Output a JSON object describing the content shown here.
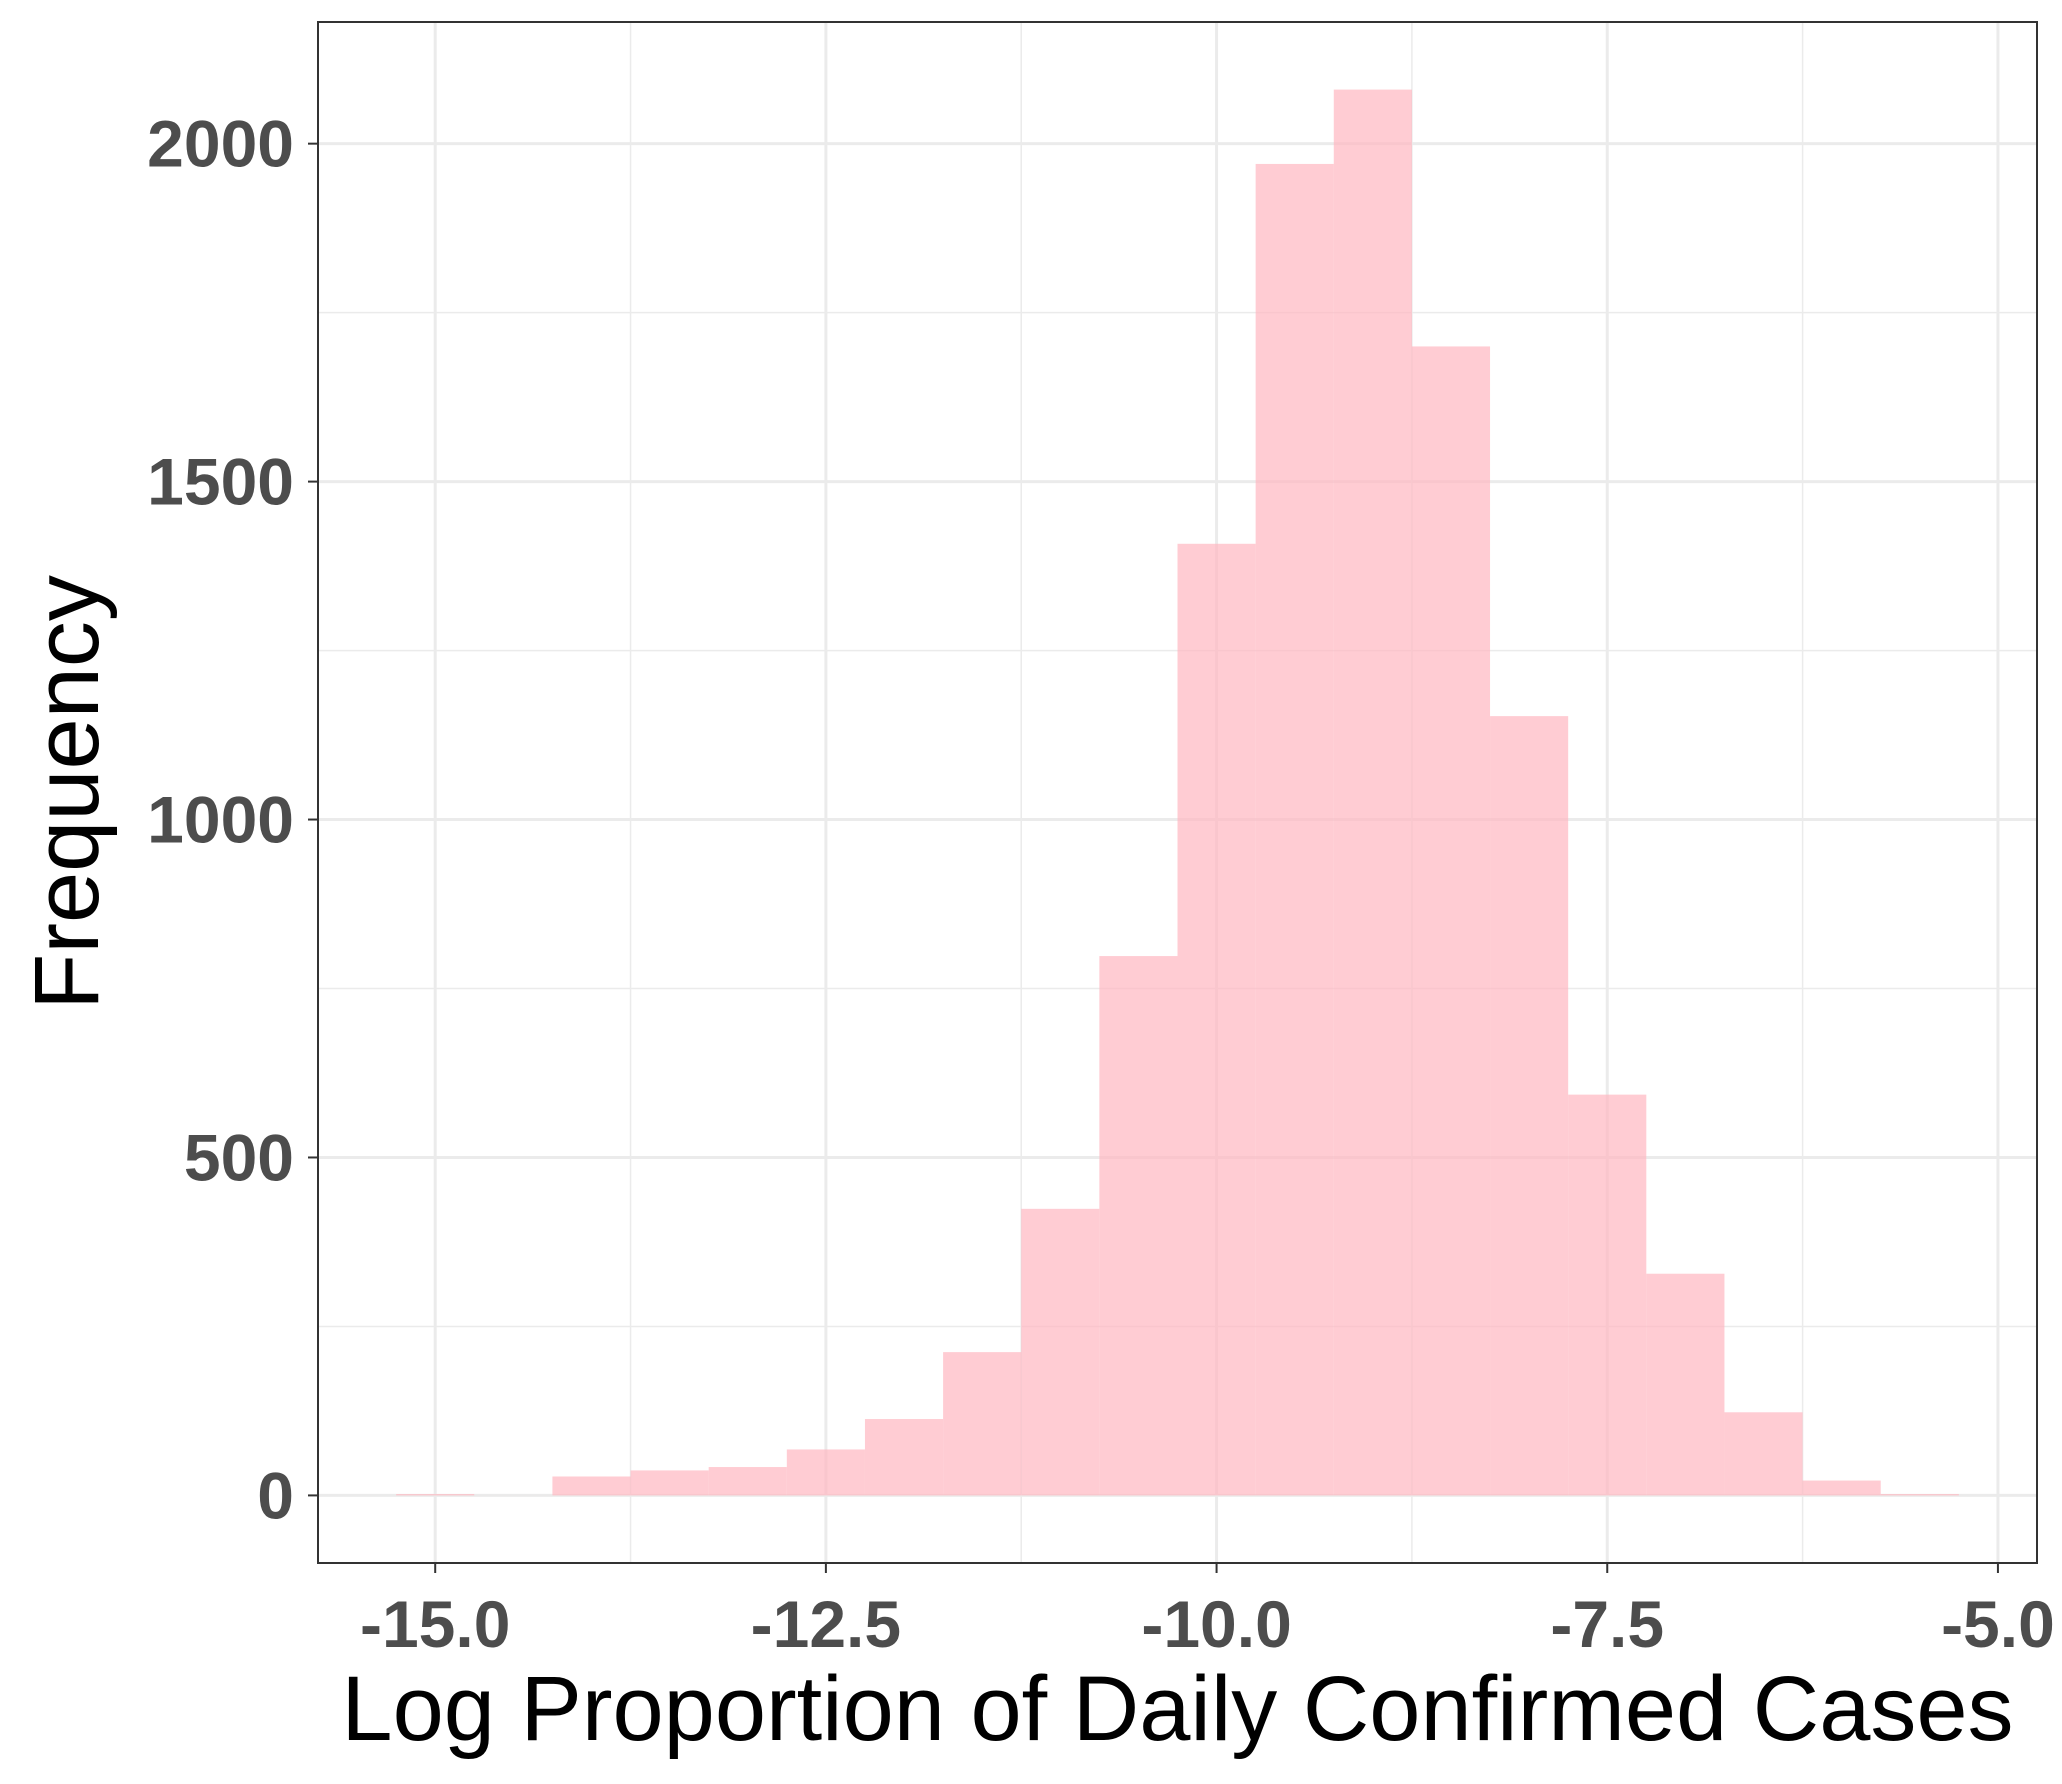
{
  "chart_data": {
    "type": "bar",
    "subtype": "histogram",
    "title": "",
    "xlabel": "Log Proportion of Daily Confirmed Cases",
    "ylabel": "Frequency",
    "bin_width": 0.5,
    "xlim": [
      -15.75,
      -4.75
    ],
    "ylim": [
      -100,
      2180
    ],
    "x_ticks": [
      -15.0,
      -12.5,
      -10.0,
      -7.5,
      -5.0
    ],
    "x_tick_labels": [
      "-15.0",
      "-12.5",
      "-10.0",
      "-7.5",
      "-5.0"
    ],
    "y_ticks": [
      0,
      500,
      1000,
      1500,
      2000
    ],
    "y_tick_labels": [
      "0",
      "500",
      "1000",
      "1500",
      "2000"
    ],
    "bins": [
      {
        "x": -15.0,
        "count": 2
      },
      {
        "x": -14.5,
        "count": 0
      },
      {
        "x": -14.0,
        "count": 28
      },
      {
        "x": -13.5,
        "count": 37
      },
      {
        "x": -13.0,
        "count": 42
      },
      {
        "x": -12.5,
        "count": 68
      },
      {
        "x": -12.0,
        "count": 113
      },
      {
        "x": -11.5,
        "count": 212
      },
      {
        "x": -11.0,
        "count": 424
      },
      {
        "x": -10.5,
        "count": 798
      },
      {
        "x": -10.0,
        "count": 1408
      },
      {
        "x": -9.5,
        "count": 1970
      },
      {
        "x": -9.0,
        "count": 2080
      },
      {
        "x": -8.5,
        "count": 1700
      },
      {
        "x": -8.0,
        "count": 1153
      },
      {
        "x": -7.5,
        "count": 593
      },
      {
        "x": -7.0,
        "count": 328
      },
      {
        "x": -6.5,
        "count": 123
      },
      {
        "x": -6.0,
        "count": 22
      },
      {
        "x": -5.5,
        "count": 2
      }
    ],
    "bar_color": "#ffb6c1",
    "bar_opacity": 0.7,
    "grid": true,
    "legend": "none"
  }
}
